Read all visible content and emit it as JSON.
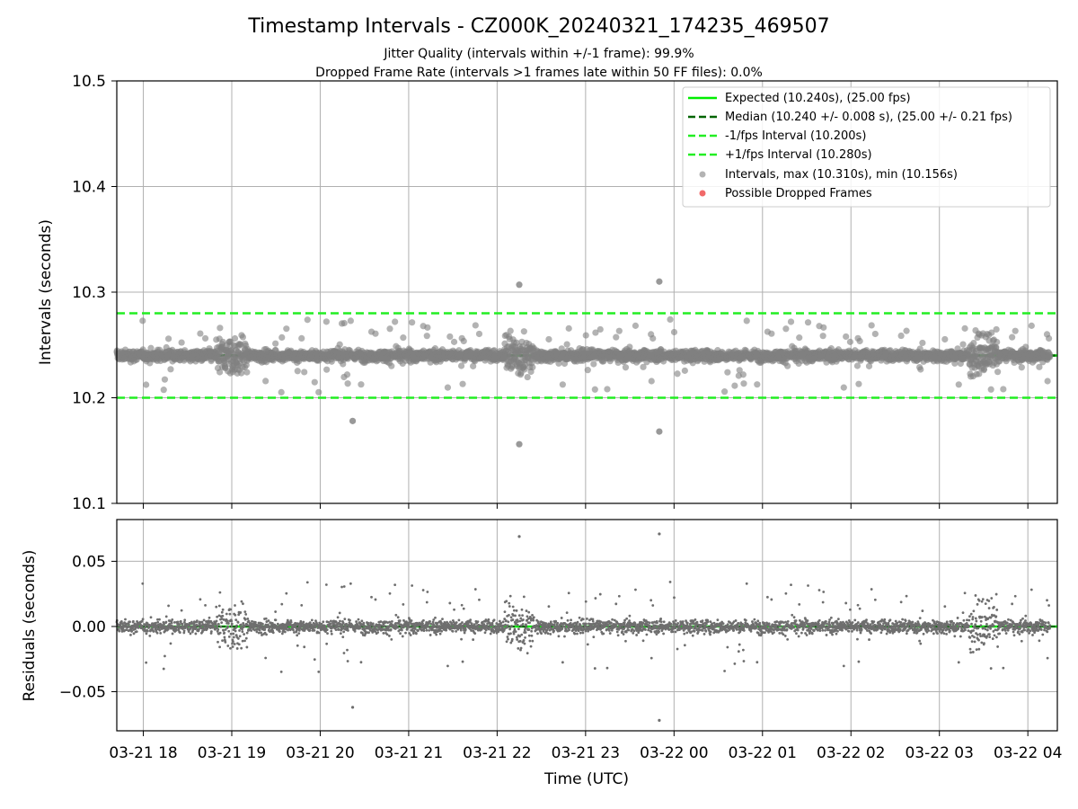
{
  "figure": {
    "title": "Timestamp Intervals - CZ000K_20240321_174235_469507",
    "subtitle_1": "Jitter Quality (intervals within +/-1 frame): 99.9%",
    "subtitle_2": "Dropped Frame Rate (intervals >1 frames late within 50 FF files): 0.0%"
  },
  "colors": {
    "expected": "#00ee00",
    "median": "#006400",
    "fps_band": "#22ee22",
    "points": "#808080",
    "dropped": "#ee4444",
    "grid": "#b0b0b0"
  },
  "chart_data": [
    {
      "type": "scatter",
      "ylabel": "Intervals (seconds)",
      "ylim": [
        10.1,
        10.5
      ],
      "yticks": [
        "10.1",
        "10.2",
        "10.3",
        "10.4",
        "10.5"
      ],
      "grid": true,
      "legend_placement": "top-right",
      "reference_lines": [
        {
          "name": "Expected (10.240s), (25.00 fps)",
          "y": 10.24,
          "style": "solid"
        },
        {
          "name": "Median (10.240 +/- 0.008 s), (25.00 +/- 0.21 fps)",
          "y": 10.24,
          "style": "dashed"
        },
        {
          "name": "-1/fps Interval (10.200s)",
          "y": 10.2,
          "style": "dashed"
        },
        {
          "name": "+1/fps Interval (10.280s)",
          "y": 10.28,
          "style": "dashed"
        }
      ],
      "series": [
        {
          "name": "Intervals, max (10.310s), min (10.156s)",
          "marker": "circle",
          "count": 3500,
          "center": 10.24,
          "spread": 0.008,
          "min": 10.156,
          "max": 10.31,
          "outliers": [
            {
              "x": "2024-03-21 22:15",
              "y": 10.307
            },
            {
              "x": "2024-03-21 22:15",
              "y": 10.156
            },
            {
              "x": "2024-03-21 23:50",
              "y": 10.31
            },
            {
              "x": "2024-03-21 23:50",
              "y": 10.168
            },
            {
              "x": "2024-03-21 20:22",
              "y": 10.178
            }
          ]
        },
        {
          "name": "Possible Dropped Frames",
          "marker": "circle",
          "values": []
        }
      ]
    },
    {
      "type": "scatter",
      "ylabel": "Residuals (seconds)",
      "ylim": [
        -0.08,
        0.082
      ],
      "yticks": [
        "−0.05",
        "0.00",
        "0.05"
      ],
      "ytick_values": [
        -0.05,
        0.0,
        0.05
      ],
      "grid": true,
      "xlabel": "Time (UTC)",
      "x_range": [
        "2024-03-21 17:42",
        "2024-03-22 04:20"
      ],
      "xticks": [
        "03-21 18",
        "03-21 19",
        "03-21 20",
        "03-21 21",
        "03-21 22",
        "03-21 23",
        "03-22 00",
        "03-22 01",
        "03-22 02",
        "03-22 03",
        "03-22 04"
      ],
      "series": [
        {
          "name": "Residuals",
          "count": 3500,
          "center": 0.0,
          "spread": 0.008,
          "outliers": [
            {
              "x": "2024-03-21 22:15",
              "y": 0.069
            },
            {
              "x": "2024-03-21 23:50",
              "y": 0.071
            },
            {
              "x": "2024-03-21 23:50",
              "y": -0.072
            },
            {
              "x": "2024-03-21 20:22",
              "y": -0.062
            }
          ]
        }
      ]
    }
  ]
}
